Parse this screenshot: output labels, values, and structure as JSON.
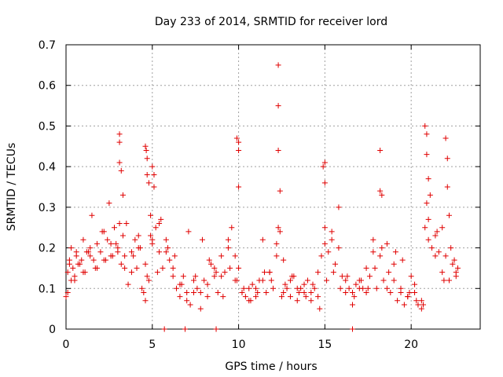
{
  "chart_data": {
    "type": "scatter",
    "title": "Day 233 of 2014, SRMTID for receiver lord",
    "xlabel": "GPS time / hours",
    "ylabel": "SRMTID / TECUs",
    "xlim": [
      0,
      24
    ],
    "ylim": [
      0,
      0.7
    ],
    "x_ticks": [
      "0",
      "5",
      "10",
      "15",
      "20"
    ],
    "y_ticks": [
      "0",
      "0.1",
      "0.2",
      "0.3",
      "0.4",
      "0.5",
      "0.6",
      "0.7"
    ],
    "grid": true,
    "legend": "none",
    "marker": "plus",
    "color": "#e00000",
    "series": [
      {
        "name": "SRMTID",
        "x": [
          0.0,
          0.1,
          0.2,
          0.3,
          0.4,
          0.5,
          0.6,
          0.8,
          1.0,
          1.2,
          1.4,
          1.5,
          1.6,
          1.8,
          2.0,
          2.2,
          2.4,
          2.5,
          2.6,
          2.8,
          3.0,
          3.1,
          3.2,
          3.3,
          3.4,
          3.6,
          3.8,
          4.0,
          4.2,
          4.4,
          4.5,
          4.6,
          4.7,
          4.8,
          4.9,
          5.0,
          5.1,
          5.2,
          5.4,
          5.6,
          5.8,
          6.0,
          6.2,
          6.4,
          6.6,
          6.8,
          7.0,
          7.2,
          7.4,
          7.6,
          7.8,
          8.0,
          8.2,
          8.4,
          8.6,
          8.8,
          9.0,
          9.2,
          9.4,
          9.6,
          9.8,
          10.0,
          10.2,
          10.4,
          10.6,
          10.8,
          11.0,
          11.2,
          11.4,
          11.6,
          11.8,
          12.0,
          12.2,
          12.3,
          12.4,
          12.6,
          12.8,
          13.0,
          13.2,
          13.4,
          13.6,
          13.8,
          14.0,
          14.2,
          14.4,
          14.6,
          14.8,
          15.0,
          15.2,
          15.4,
          15.6,
          15.8,
          16.0,
          16.2,
          16.4,
          16.6,
          16.8,
          17.0,
          17.2,
          17.4,
          17.6,
          17.8,
          18.0,
          18.2,
          18.4,
          18.6,
          18.8,
          19.0,
          19.2,
          19.4,
          19.6,
          19.8,
          20.0,
          20.2,
          20.4,
          20.6,
          20.8,
          20.9,
          21.0,
          21.2,
          21.4,
          21.6,
          21.8,
          22.0,
          22.2,
          22.4,
          22.6,
          22.7,
          0.1,
          0.3,
          0.5,
          0.7,
          0.9,
          1.1,
          1.3,
          1.7,
          2.1,
          2.3,
          2.7,
          2.9,
          3.3,
          3.5,
          3.9,
          4.1,
          4.3,
          4.7,
          4.9,
          5.3,
          5.5,
          5.9,
          6.3,
          6.7,
          7.1,
          7.5,
          7.9,
          8.3,
          8.7,
          9.1,
          9.5,
          9.9,
          10.3,
          10.7,
          11.1,
          11.5,
          11.9,
          12.5,
          12.7,
          13.1,
          13.5,
          13.9,
          14.3,
          14.7,
          15.1,
          15.5,
          15.9,
          16.3,
          16.7,
          17.1,
          17.5,
          17.9,
          18.3,
          18.7,
          19.1,
          19.5,
          19.9,
          20.3,
          20.7,
          21.1,
          21.5,
          21.9,
          22.3,
          22.5,
          0.2,
          0.6,
          1.0,
          1.4,
          1.8,
          2.2,
          2.6,
          3.0,
          3.4,
          3.8,
          4.2,
          4.6,
          5.0,
          5.4,
          5.8,
          6.2,
          6.6,
          7.0,
          7.4,
          7.8,
          8.2,
          8.6,
          9.0,
          9.4,
          9.8,
          10.2,
          10.6,
          11.0,
          11.4,
          11.8,
          12.2,
          12.6,
          13.0,
          13.4,
          13.8,
          14.2,
          14.6,
          15.0,
          15.4,
          15.8,
          16.2,
          16.6,
          17.0,
          17.4,
          17.8,
          18.2,
          18.6,
          19.0,
          19.4,
          19.8,
          20.2,
          20.6,
          21.0,
          21.4,
          21.8,
          22.2,
          22.6,
          3.1,
          3.1,
          3.1,
          3.2,
          4.6,
          4.65,
          4.7,
          4.8,
          5.0,
          5.1,
          9.9,
          10.0,
          10.0,
          10.0,
          12.3,
          12.3,
          12.3,
          12.4,
          14.9,
          15.0,
          15.0,
          18.2,
          18.3,
          20.8,
          20.9,
          20.9,
          21.0,
          22.0,
          22.1,
          22.1,
          5.7,
          6.9,
          8.7,
          16.6
        ],
        "y": [
          0.08,
          0.14,
          0.17,
          0.12,
          0.15,
          0.13,
          0.18,
          0.16,
          0.22,
          0.19,
          0.2,
          0.28,
          0.17,
          0.21,
          0.19,
          0.24,
          0.22,
          0.31,
          0.18,
          0.25,
          0.2,
          0.26,
          0.16,
          0.33,
          0.15,
          0.11,
          0.19,
          0.22,
          0.2,
          0.1,
          0.09,
          0.07,
          0.38,
          0.12,
          0.28,
          0.22,
          0.35,
          0.25,
          0.19,
          0.15,
          0.22,
          0.17,
          0.13,
          0.1,
          0.08,
          0.13,
          0.07,
          0.06,
          0.09,
          0.1,
          0.05,
          0.12,
          0.08,
          0.16,
          0.13,
          0.09,
          0.18,
          0.14,
          0.22,
          0.25,
          0.18,
          0.15,
          0.09,
          0.08,
          0.07,
          0.11,
          0.1,
          0.12,
          0.22,
          0.09,
          0.14,
          0.1,
          0.21,
          0.25,
          0.24,
          0.17,
          0.1,
          0.08,
          0.13,
          0.07,
          0.1,
          0.09,
          0.12,
          0.07,
          0.1,
          0.08,
          0.18,
          0.21,
          0.19,
          0.24,
          0.16,
          0.2,
          0.13,
          0.09,
          0.1,
          0.06,
          0.11,
          0.12,
          0.1,
          0.09,
          0.13,
          0.22,
          0.1,
          0.18,
          0.12,
          0.1,
          0.09,
          0.16,
          0.07,
          0.1,
          0.06,
          0.08,
          0.13,
          0.09,
          0.06,
          0.05,
          0.25,
          0.31,
          0.27,
          0.2,
          0.23,
          0.19,
          0.14,
          0.18,
          0.12,
          0.16,
          0.14,
          0.15,
          0.09,
          0.2,
          0.12,
          0.16,
          0.17,
          0.14,
          0.19,
          0.15,
          0.24,
          0.17,
          0.18,
          0.21,
          0.23,
          0.26,
          0.18,
          0.15,
          0.2,
          0.13,
          0.23,
          0.14,
          0.27,
          0.2,
          0.18,
          0.11,
          0.24,
          0.13,
          0.22,
          0.17,
          0.14,
          0.08,
          0.15,
          0.12,
          0.1,
          0.07,
          0.09,
          0.14,
          0.12,
          0.08,
          0.11,
          0.13,
          0.09,
          0.08,
          0.11,
          0.05,
          0.12,
          0.14,
          0.1,
          0.13,
          0.08,
          0.12,
          0.1,
          0.15,
          0.2,
          0.14,
          0.19,
          0.17,
          0.09,
          0.07,
          0.06,
          0.33,
          0.24,
          0.12,
          0.2,
          0.17,
          0.16,
          0.19,
          0.14,
          0.18,
          0.15,
          0.17,
          0.21,
          0.19,
          0.18,
          0.14,
          0.23,
          0.16,
          0.21,
          0.26,
          0.19,
          0.15,
          0.11,
          0.09,
          0.12,
          0.09,
          0.11,
          0.15,
          0.13,
          0.2,
          0.12,
          0.09,
          0.1,
          0.08,
          0.12,
          0.14,
          0.18,
          0.09,
          0.12,
          0.1,
          0.11,
          0.09,
          0.14,
          0.25,
          0.22,
          0.3,
          0.12,
          0.09,
          0.1,
          0.15,
          0.19,
          0.34,
          0.21,
          0.12,
          0.09,
          0.08,
          0.11,
          0.07,
          0.22,
          0.18,
          0.25,
          0.28,
          0.13,
          0.48,
          0.46,
          0.41,
          0.39,
          0.45,
          0.44,
          0.42,
          0.36,
          0.4,
          0.38,
          0.47,
          0.46,
          0.44,
          0.35,
          0.65,
          0.55,
          0.44,
          0.34,
          0.4,
          0.41,
          0.36,
          0.44,
          0.33,
          0.5,
          0.48,
          0.43,
          0.37,
          0.47,
          0.42,
          0.35,
          0.0,
          0.0,
          0.0,
          0.0
        ]
      }
    ]
  }
}
